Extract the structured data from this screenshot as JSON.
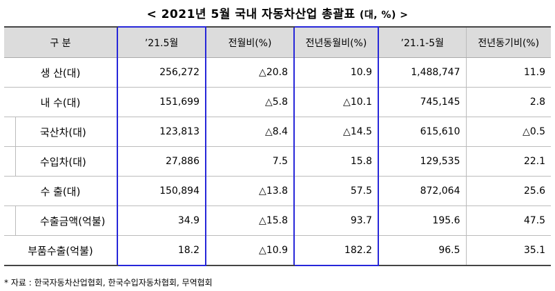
{
  "title": "< 2021년 5월 국내 자동차산업 총괄표",
  "title_unit": "(대, %) >",
  "headers": [
    "구   분",
    "’21.5월",
    "전월비(%)",
    "전년동월비(%)",
    "’21.1-5월",
    "전년동기비(%)"
  ],
  "rows": [
    {
      "label": "생   산(대)",
      "sub": false,
      "values": [
        "256,272",
        "△20.8",
        "10.9",
        "1,488,747",
        "11.9"
      ]
    },
    {
      "label": "내   수(대)",
      "sub": false,
      "values": [
        "151,699",
        "△5.8",
        "△10.1",
        "745,145",
        "2.8"
      ]
    },
    {
      "label": "국산차(대)",
      "sub": true,
      "values": [
        "123,813",
        "△8.4",
        "△14.5",
        "615,610",
        "△0.5"
      ]
    },
    {
      "label": "수입차(대)",
      "sub": true,
      "values": [
        "27,886",
        "7.5",
        "15.8",
        "129,535",
        "22.1"
      ]
    },
    {
      "label": "수   출(대)",
      "sub": false,
      "values": [
        "150,894",
        "△13.8",
        "57.5",
        "872,064",
        "25.6"
      ]
    },
    {
      "label": "수출금액(억불)",
      "sub": true,
      "values": [
        "34.9",
        "△15.8",
        "93.7",
        "195.6",
        "47.5"
      ]
    },
    {
      "label": "부품수출(억불)",
      "sub": false,
      "values": [
        "18.2",
        "△10.9",
        "182.2",
        "96.5",
        "35.1"
      ]
    }
  ],
  "note": "* 자료 : 한국자동차산업협회, 한국수입자동차협회, 무역협회",
  "colors": {
    "header_bg": "#dcdcdc",
    "highlight_border": "#2626d9"
  }
}
